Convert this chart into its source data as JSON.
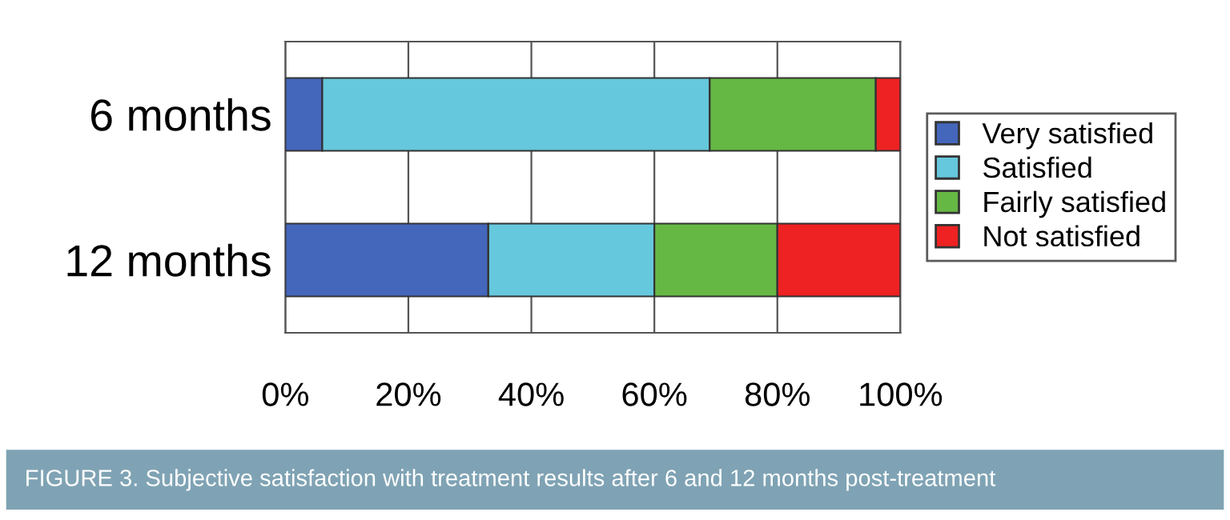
{
  "chart_data": {
    "type": "bar",
    "orientation": "horizontal",
    "stacked": true,
    "title": "FIGURE 3. Subjective satisfaction with treatment results after 6 and 12 months post-treatment",
    "categories": [
      "6 months",
      "12 months"
    ],
    "series": [
      {
        "name": "Very satisfied",
        "color": "#4466bb",
        "values": [
          6,
          33
        ]
      },
      {
        "name": "Satisfied",
        "color": "#66c8dc",
        "values": [
          63,
          27
        ]
      },
      {
        "name": "Fairly satisfied",
        "color": "#66b844",
        "values": [
          27,
          20
        ]
      },
      {
        "name": "Not satisfied",
        "color": "#ee2222",
        "values": [
          4,
          20
        ]
      }
    ],
    "xlim": [
      0,
      100
    ],
    "xticks": [
      {
        "value": 0,
        "label": "0%"
      },
      {
        "value": 20,
        "label": "20%"
      },
      {
        "value": 40,
        "label": "40%"
      },
      {
        "value": 60,
        "label": "60%"
      },
      {
        "value": 80,
        "label": "80%"
      },
      {
        "value": 100,
        "label": "100%"
      }
    ],
    "grid": "x",
    "legend": "right"
  }
}
